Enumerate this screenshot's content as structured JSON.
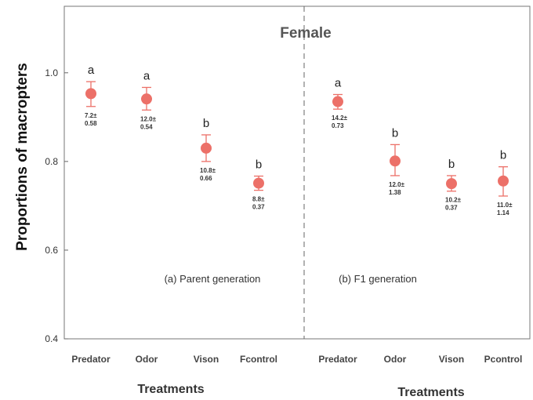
{
  "chart_data": {
    "type": "scatter",
    "title": "Female",
    "ylabel": "Proportions of macropters",
    "xlabel": "Treatments",
    "ylim": [
      0.4,
      1.15
    ],
    "yticks": [
      "0.4",
      "0.6",
      "0.8",
      "1.0"
    ],
    "marker_color": "#ec7068",
    "panels": [
      {
        "label": "(a) Parent generation",
        "xlabel": "Treatments",
        "categories": [
          "Predator",
          "Odor",
          "Vison",
          "Fcontrol"
        ],
        "values": [
          0.953,
          0.941,
          0.83,
          0.751
        ],
        "err_upper": [
          0.98,
          0.967,
          0.86,
          0.767
        ],
        "err_lower": [
          0.924,
          0.916,
          0.8,
          0.735
        ],
        "significance": [
          "a",
          "a",
          "b",
          "b"
        ],
        "annotations": [
          [
            "7.2±",
            "0.58"
          ],
          [
            "12.0±",
            "0.54"
          ],
          [
            "10.8±",
            "0.66"
          ],
          [
            "8.8±",
            "0.37"
          ]
        ]
      },
      {
        "label": "(b) F1 generation",
        "xlabel": "Treatments",
        "categories": [
          "Predator",
          "Odor",
          "Vison",
          "Pcontrol"
        ],
        "values": [
          0.935,
          0.801,
          0.75,
          0.756
        ],
        "err_upper": [
          0.951,
          0.838,
          0.768,
          0.788
        ],
        "err_lower": [
          0.918,
          0.768,
          0.733,
          0.722
        ],
        "significance": [
          "a",
          "b",
          "b",
          "b"
        ],
        "annotations": [
          [
            "14.2±",
            "0.73"
          ],
          [
            "12.0±",
            "1.38"
          ],
          [
            "10.2±",
            "0.37"
          ],
          [
            "11.0±",
            "1.14"
          ]
        ]
      }
    ]
  }
}
